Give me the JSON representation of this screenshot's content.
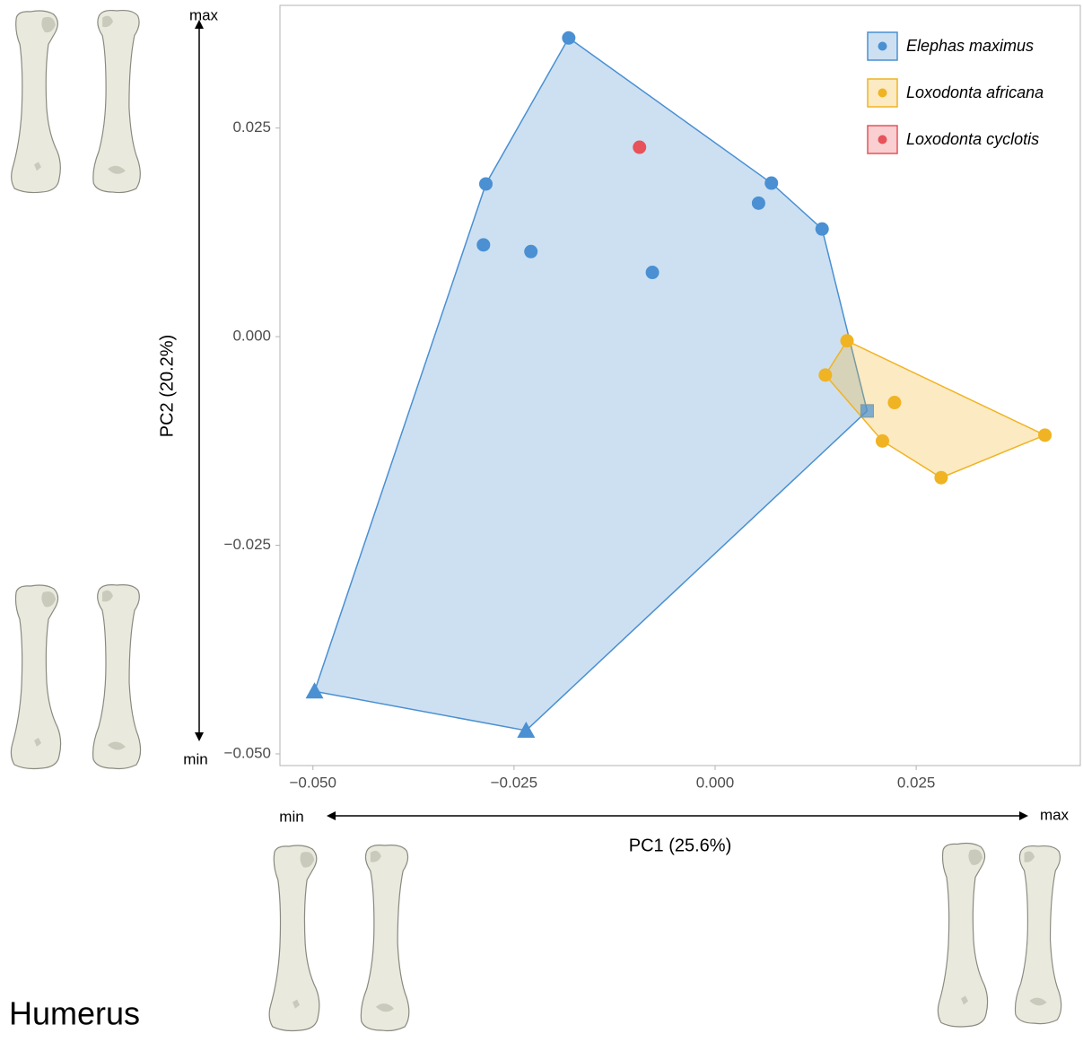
{
  "chart_data": {
    "type": "scatter",
    "x_label": "PC1 (25.6%)",
    "y_label": "PC2 (20.2%)",
    "xlim": [
      -0.0541,
      0.0454
    ],
    "ylim": [
      -0.0514,
      0.0397
    ],
    "xticks": [
      {
        "value": -0.05,
        "label": "−0.050"
      },
      {
        "value": -0.025,
        "label": "−0.025"
      },
      {
        "value": 0,
        "label": "0.000"
      },
      {
        "value": 0.025,
        "label": "0.025"
      }
    ],
    "yticks": [
      {
        "value": -0.05,
        "label": "−0.050"
      },
      {
        "value": -0.025,
        "label": "−0.025"
      },
      {
        "value": 0,
        "label": "0.000"
      },
      {
        "value": 0.025,
        "label": "0.025"
      }
    ],
    "grid": false,
    "legend": "top-right",
    "convex_hulls": true,
    "annotations": {
      "y_max": "max",
      "y_min": "min",
      "x_min": "min",
      "x_max": "max",
      "panel": "Humerus"
    },
    "series": [
      {
        "name": "Elephas maximus",
        "color": "#4a90d2",
        "x": [
          -0.0182,
          -0.0285,
          -0.0288,
          -0.0229,
          -0.0078,
          0.0054,
          0.007,
          0.0133,
          -0.0498,
          -0.0235,
          0.0189
        ],
        "y": [
          0.0358,
          0.0183,
          0.011,
          0.0102,
          0.0077,
          0.016,
          0.0184,
          0.0129,
          -0.0425,
          -0.0472,
          -0.0089
        ],
        "markers": [
          "circle",
          "circle",
          "circle",
          "circle",
          "circle",
          "circle",
          "circle",
          "circle",
          "triangle",
          "triangle",
          "square"
        ]
      },
      {
        "name": "Loxodonta africana",
        "color": "#f0b323",
        "x": [
          0.0164,
          0.0137,
          0.0223,
          0.0208,
          0.0281,
          0.041
        ],
        "y": [
          -0.0005,
          -0.0046,
          -0.0079,
          -0.0125,
          -0.0169,
          -0.0118
        ],
        "markers": [
          "circle",
          "circle",
          "circle",
          "circle",
          "circle",
          "circle"
        ]
      },
      {
        "name": "Loxodonta cyclotis",
        "color": "#e8525a",
        "x": [
          -0.0094
        ],
        "y": [
          0.0227
        ],
        "markers": [
          "circle"
        ]
      }
    ]
  }
}
